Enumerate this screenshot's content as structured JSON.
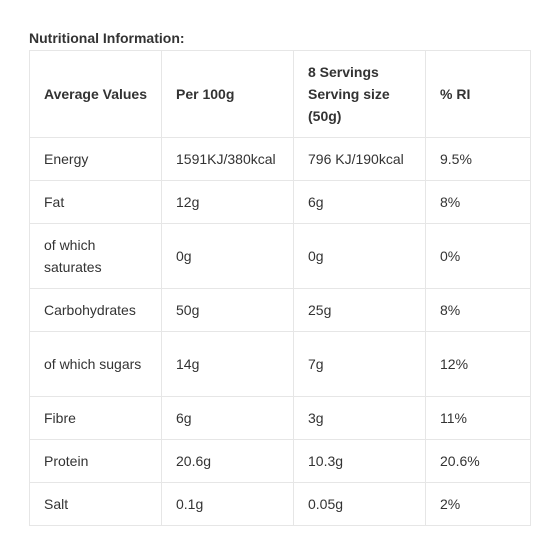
{
  "heading": "Nutritional Information:",
  "columns": {
    "col1": "Average Values",
    "col2": "Per 100g",
    "col3": "8 Servings Serving size (50g)",
    "col4": "% RI"
  },
  "rows": [
    {
      "label": "Energy",
      "per100": "1591KJ/380kcal",
      "serving": "796 KJ/190kcal",
      "ri": "9.5%"
    },
    {
      "label": "Fat",
      "per100": "12g",
      "serving": "6g",
      "ri": "8%"
    },
    {
      "label": "of which saturates",
      "per100": "0g",
      "serving": "0g",
      "ri": "0%"
    },
    {
      "label": "Carbohydrates",
      "per100": "50g",
      "serving": "25g",
      "ri": "8%"
    },
    {
      "label": "of which sugars",
      "per100": "14g",
      "serving": "7g",
      "ri": "12%"
    },
    {
      "label": "Fibre",
      "per100": "6g",
      "serving": "3g",
      "ri": "11%"
    },
    {
      "label": "Protein",
      "per100": "20.6g",
      "serving": "10.3g",
      "ri": "20.6%"
    },
    {
      "label": "Salt",
      "per100": "0.1g",
      "serving": "0.05g",
      "ri": "2%"
    }
  ]
}
